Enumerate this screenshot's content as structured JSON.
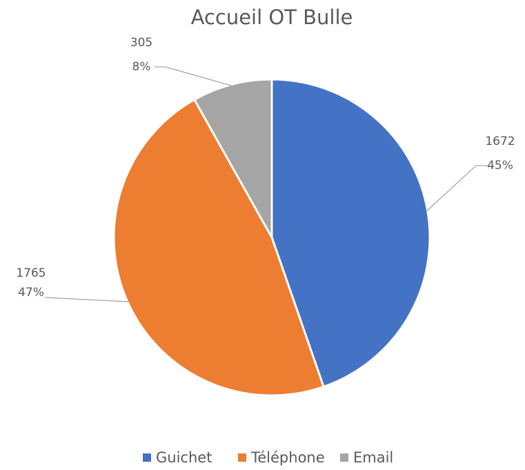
{
  "chart_data": {
    "type": "pie",
    "title": "Accueil OT Bulle",
    "categories": [
      "Guichet",
      "Téléphone",
      "Email"
    ],
    "values": [
      1672,
      1765,
      305
    ],
    "percent_labels": [
      "45%",
      "47%",
      "8%"
    ],
    "colors": [
      "#4472c4",
      "#ed7d31",
      "#a5a5a5"
    ],
    "legend": "bottom"
  }
}
